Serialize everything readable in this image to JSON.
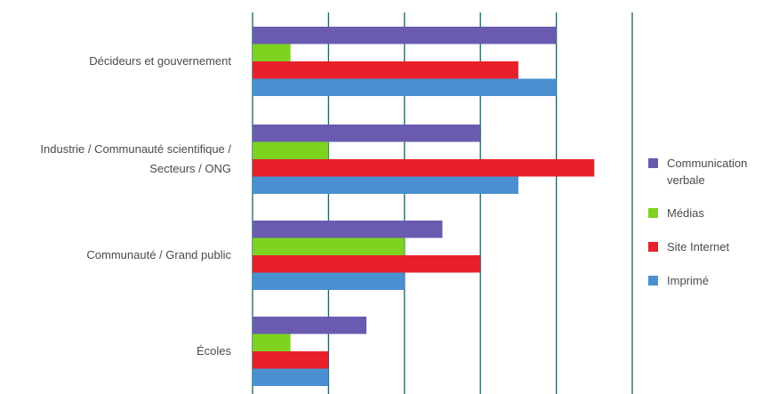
{
  "chart_data": {
    "type": "bar",
    "orientation": "horizontal",
    "categories": [
      [
        "Décideurs et gouvernement"
      ],
      [
        "Industrie / Communauté scientifique /",
        "Secteurs / ONG"
      ],
      [
        "Communauté / Grand public"
      ],
      [
        "Écoles"
      ]
    ],
    "series": [
      {
        "name": "Communication verbale",
        "legend_lines": [
          "Communication",
          "verbale"
        ],
        "color": "#6a5bb0",
        "values": [
          4,
          3,
          2.5,
          1.5
        ]
      },
      {
        "name": "Médias",
        "legend_lines": [
          "Médias"
        ],
        "color": "#7ed321",
        "values": [
          0.5,
          1,
          2,
          0.5
        ]
      },
      {
        "name": "Site Internet",
        "legend_lines": [
          "Site Internet"
        ],
        "color": "#e8202a",
        "values": [
          3.5,
          4.5,
          3,
          1
        ]
      },
      {
        "name": "Imprimé",
        "legend_lines": [
          "Imprimé"
        ],
        "color": "#4a90d0",
        "values": [
          4,
          3.5,
          2,
          1
        ]
      }
    ],
    "xlim": [
      0,
      5
    ],
    "grid": true,
    "tick_labels_shown": false,
    "legend_position": "right"
  }
}
